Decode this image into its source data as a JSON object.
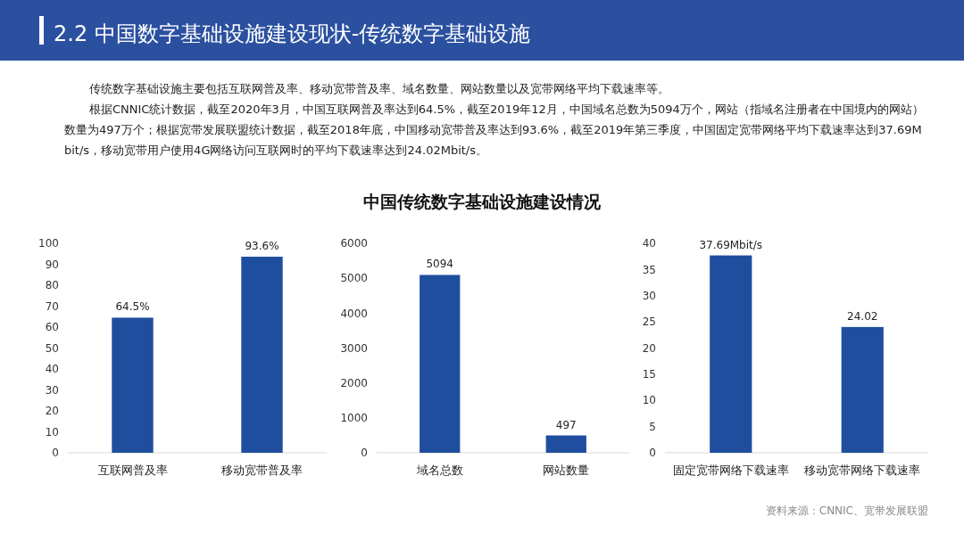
{
  "chart_data": [
    {
      "type": "other",
      "title": "2.2 中国数字基础设施建设现状-传统数字基础设施",
      "subtitle": "中国传统数字基础设施建设情况",
      "color": "#2b50a0",
      "annotations": [
        "传统数字基础设施主要包括互联网普及率、移动宽带普及率、域名数量、网站数量以及宽带网络平均下载速率等。",
        "根据CNNIC统计数据，截至2020年3月，中国互联网普及率达到64.5%，截至2019年12月，中国域名总数为5094万个，网站（指域名注册者在中国境内的网站）数量为497万个；根据宽带发展联盟统计数据，截至2018年底，中国移动宽带普及率达到93.6%，截至2019年第三季度，中国固定宽带网络平均下载速率达到37.69Mbit/s，移动宽带用户使用4G网络访问互联网时的平均下载速率达到24.02Mbit/s。",
        "资料来源：CNNIC、宽带发展联盟"
      ]
    },
    {
      "type": "bar",
      "categories": [
        "互联网普及率",
        "移动宽带普及率"
      ],
      "values": [
        64.5,
        93.6
      ],
      "value_labels": [
        "64.5%",
        "93.6%"
      ],
      "color": "#1f4e9e",
      "ylim": [
        0,
        100
      ],
      "yticks": [
        0,
        10,
        20,
        30,
        40,
        50,
        60,
        70,
        80,
        90,
        100
      ]
    },
    {
      "type": "bar",
      "categories": [
        "域名总数",
        "网站数量"
      ],
      "values": [
        5094,
        497
      ],
      "data_labels": true,
      "color": "#1f4e9e",
      "ylim": [
        0,
        6000
      ],
      "yticks": [
        0,
        1000,
        2000,
        3000,
        4000,
        5000,
        6000
      ]
    },
    {
      "type": "bar",
      "categories": [
        "固定宽带网络下载速率",
        "移动宽带网络下载速率"
      ],
      "values": [
        37.69,
        24.02
      ],
      "value_labels": [
        "37.69Mbit/s",
        "24.02"
      ],
      "color": "#1f4e9e",
      "ylim": [
        0,
        40
      ],
      "yticks": [
        0,
        5,
        10,
        15,
        20,
        25,
        30,
        35,
        40
      ]
    }
  ]
}
